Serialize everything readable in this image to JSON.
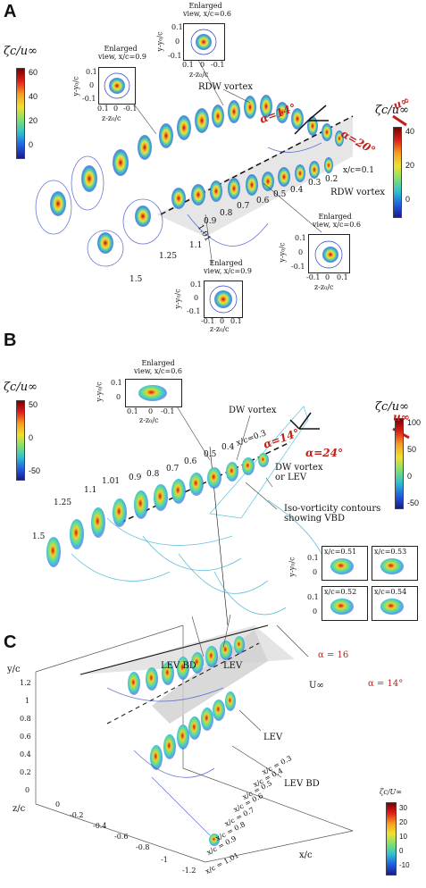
{
  "panels": {
    "a": {
      "label": "A",
      "cb_left": {
        "title": "ζc/u∞",
        "ticks": [
          "60",
          "40",
          "20",
          "0"
        ]
      },
      "cb_right": {
        "title": "ζc/u∞",
        "ticks": [
          "40",
          "20",
          "0"
        ]
      },
      "inset_top": {
        "title1": "Enlarged",
        "title2": "view, x/c=0.6",
        "ylab": "y-y₀/c",
        "xlab": "z-z₀/c",
        "yt": [
          "0.1",
          "0",
          "-0.1"
        ],
        "xt": [
          "0.1",
          "0",
          "-0.1"
        ]
      },
      "inset_left": {
        "title1": "Enlarged",
        "title2": "view, x/c=0.9",
        "ylab": "y-y₀/c",
        "xlab": "z-z₀/c",
        "yt": [
          "0.1",
          "0",
          "-0.1"
        ],
        "xt": [
          "0.1",
          "0",
          "-0.1"
        ]
      },
      "inset_br": {
        "title1": "Enlarged",
        "title2": "view, x/c=0.6",
        "ylab": "y-y₀/c",
        "xlab": "z-z₀/c",
        "yt": [
          "0.1",
          "0",
          "-0.1"
        ],
        "xt": [
          "-0.1",
          "0",
          "0.1"
        ]
      },
      "inset_bc": {
        "title1": "Enlarged",
        "title2": "view, x/c=0.9",
        "ylab": "y-y₀/c",
        "xlab": "z-z₀/c",
        "yt": [
          "0.1",
          "0",
          "-0.1"
        ],
        "xt": [
          "-0.1",
          "0",
          "0.1"
        ]
      },
      "rdw_top": "RDW vortex",
      "rdw_right": "RDW vortex",
      "alpha1": "α=14°",
      "alpha2": "α=20°",
      "uinf": "u∞",
      "xc_first": "x/c=0.1",
      "stations": [
        "0.2",
        "0.3",
        "0.4",
        "0.5",
        "0.6",
        "0.7",
        "0.8",
        "0.9",
        "1.01",
        "1.1",
        "1.25",
        "1.5"
      ]
    },
    "b": {
      "label": "B",
      "cb_left": {
        "title": "ζc/u∞",
        "ticks": [
          "50",
          "0",
          "-50"
        ]
      },
      "cb_right": {
        "title": "ζc/u∞",
        "ticks": [
          "100",
          "50",
          "0",
          "-50"
        ]
      },
      "inset_top": {
        "title1": "Enlarged",
        "title2": "view, x/c=0.6",
        "ylab": "y-y₀/c",
        "xlab": "z-z₀/c",
        "yt": [
          "0.1",
          "0"
        ],
        "xt": [
          "0.1",
          "0",
          "-0.1"
        ]
      },
      "dw_top": "DW vortex",
      "dw_right1": "DW vortex",
      "dw_right2": "or LEV",
      "iso1": "Iso-vorticity contours",
      "iso2": "showing VBD",
      "alpha1": "α=14°",
      "alpha2": "α=24°",
      "uinf": "u∞",
      "xc_first": "x/c=0.3",
      "stations": [
        "0.4",
        "0.5",
        "0.6",
        "0.7",
        "0.8",
        "0.9",
        "1.01",
        "1.1",
        "1.25",
        "1.5"
      ],
      "mini": {
        "labels": [
          "x/c=0.51",
          "x/c=0.53",
          "x/c=0.52",
          "x/c=0.54"
        ],
        "ylab": "y-y₀/c",
        "xlab": "z-z₀/c",
        "yt": [
          "0.1",
          "0"
        ],
        "xt": [
          "-0.1",
          "0",
          "0.1"
        ]
      }
    },
    "c": {
      "label": "C",
      "yaxis": "y/c",
      "yticks": [
        "1.2",
        "1",
        "0.8",
        "0.6",
        "0.4",
        "0.2",
        "0"
      ],
      "zaxis": "z/c",
      "zticks": [
        "0",
        "-0.2",
        "-0.4",
        "-0.6",
        "-0.8",
        "-1",
        "-1.2"
      ],
      "xaxis": "x/c",
      "lev_bd_top": "LEV BD",
      "lev_top": "LEV",
      "lev_right": "LEV",
      "lev_bd_right": "LEV BD",
      "alpha1": "α = 16",
      "alpha2": "α = 14°",
      "uinf": "U∞",
      "stations": [
        "x/c = 0.3",
        "x/c = 0.4",
        "x/c = 0.5",
        "x/c = 0.6",
        "x/c = 0.7",
        "x/c = 0.8",
        "x/c = 0.9",
        "x/c = 1.01"
      ],
      "cb": {
        "title": "ζc/U∞",
        "ticks": [
          "30",
          "20",
          "10",
          "0",
          "-10"
        ]
      }
    }
  },
  "colors": {
    "vortex_red": "#d0201a",
    "vortex_blue": "#2a3fbf",
    "accent_red": "#c0201a"
  }
}
